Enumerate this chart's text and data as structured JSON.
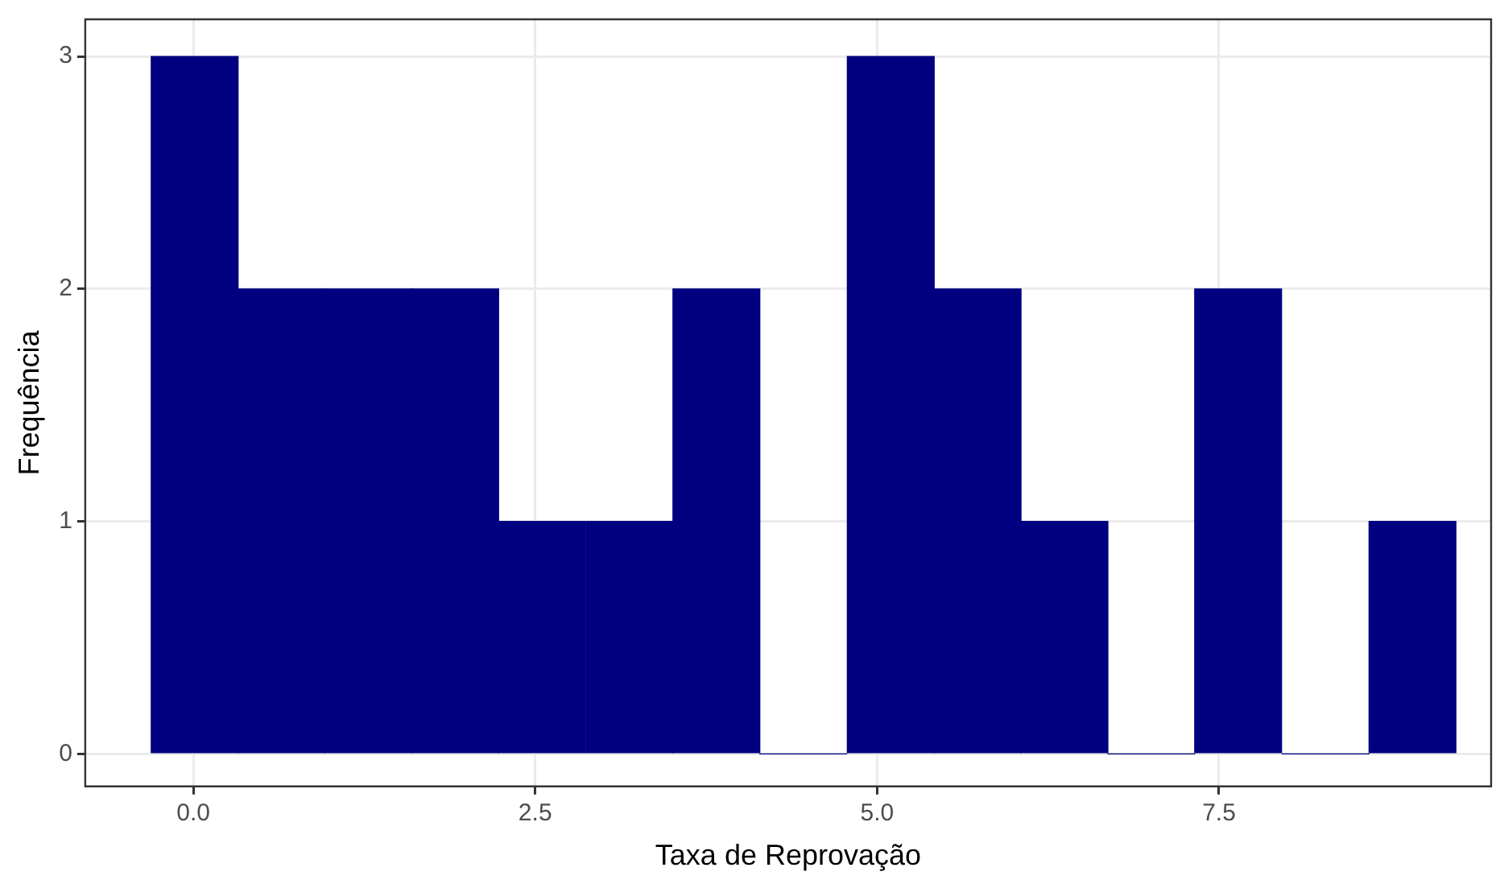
{
  "chart_data": {
    "type": "histogram",
    "xlabel": "Taxa de Reprovação",
    "ylabel": "Frequência",
    "bins": [
      -0.31,
      0.33,
      0.96,
      1.6,
      2.23,
      2.87,
      3.51,
      4.14,
      4.78,
      5.42,
      6.05,
      6.69,
      7.32,
      7.96,
      8.6,
      9.23
    ],
    "values": [
      3,
      2,
      2,
      2,
      1,
      1,
      2,
      0,
      3,
      2,
      1,
      0,
      2,
      0,
      1
    ],
    "color": "#000080",
    "xlim": [
      -0.79,
      9.49
    ],
    "xticks": [
      {
        "value": 0,
        "label": "0.0"
      },
      2.5,
      {
        "value": 5,
        "label": "5.0"
      },
      7.5
    ],
    "ylim": [
      -0.14,
      3.16
    ],
    "yticks": [
      0,
      1,
      2,
      3
    ],
    "grid": true,
    "legend": false
  }
}
